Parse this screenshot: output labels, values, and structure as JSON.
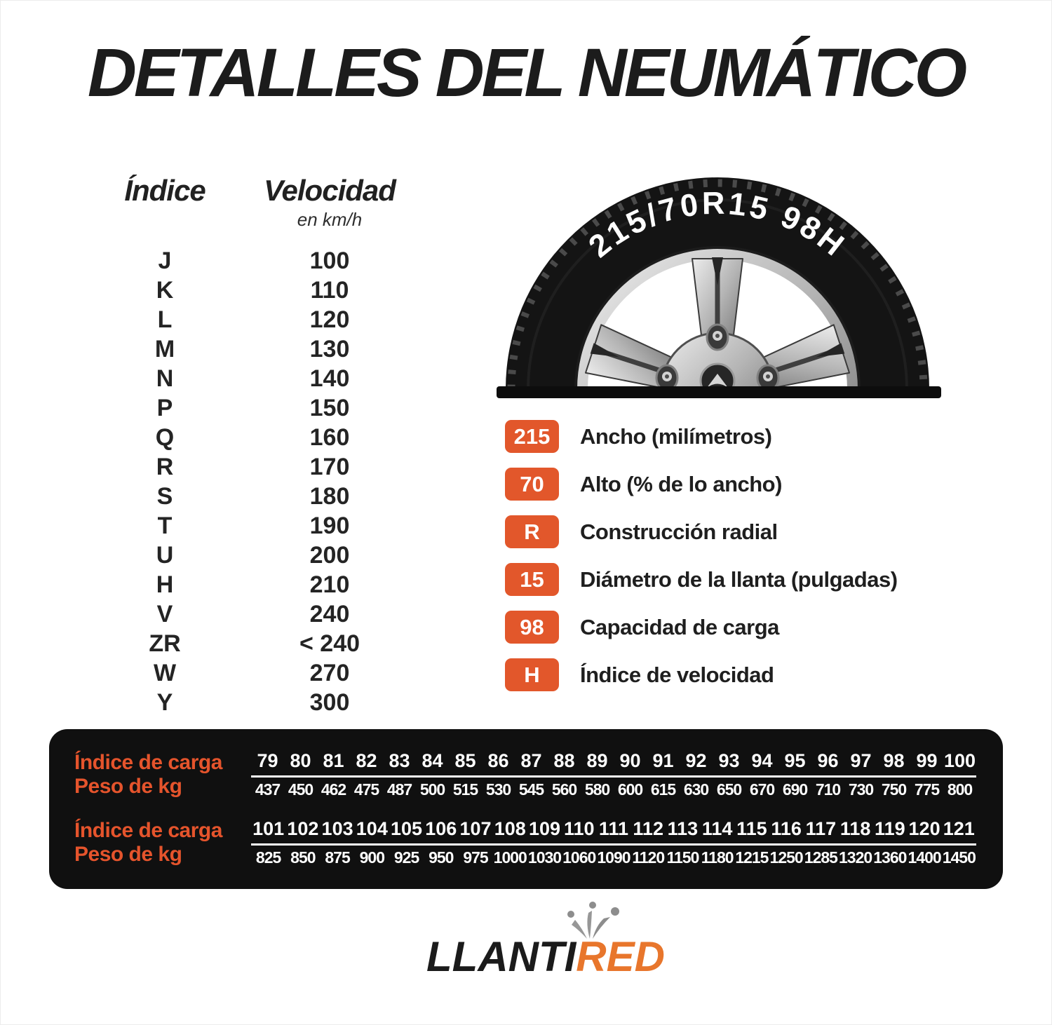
{
  "title": "DETALLES DEL NEUMÁTICO",
  "colors": {
    "accent_orange": "#E2572B",
    "panel_black": "#101010",
    "logo_orange": "#E8762C",
    "text_dark": "#1F1F1F"
  },
  "speed_table": {
    "col1_header": "Índice",
    "col2_header": "Velocidad",
    "col2_subheader": "en km/h",
    "rows": [
      {
        "letter": "J",
        "speed": "100"
      },
      {
        "letter": "K",
        "speed": "110"
      },
      {
        "letter": "L",
        "speed": "120"
      },
      {
        "letter": "M",
        "speed": "130"
      },
      {
        "letter": "N",
        "speed": "140"
      },
      {
        "letter": "P",
        "speed": "150"
      },
      {
        "letter": "Q",
        "speed": "160"
      },
      {
        "letter": "R",
        "speed": "170"
      },
      {
        "letter": "S",
        "speed": "180"
      },
      {
        "letter": "T",
        "speed": "190"
      },
      {
        "letter": "U",
        "speed": "200"
      },
      {
        "letter": "H",
        "speed": "210"
      },
      {
        "letter": "V",
        "speed": "240"
      },
      {
        "letter": "ZR",
        "speed": "< 240"
      },
      {
        "letter": "W",
        "speed": "270"
      },
      {
        "letter": "Y",
        "speed": "300"
      }
    ]
  },
  "tire": {
    "marking": "215/70R15 98H"
  },
  "legend": {
    "items": [
      {
        "badge": "215",
        "label": "Ancho (milímetros)"
      },
      {
        "badge": "70",
        "label": "Alto (% de lo ancho)"
      },
      {
        "badge": "R",
        "label": "Construcción radial"
      },
      {
        "badge": "15",
        "label": "Diámetro de la llanta (pulgadas)"
      },
      {
        "badge": "98",
        "label": "Capacidad de carga"
      },
      {
        "badge": "H",
        "label": "Índice de velocidad"
      }
    ]
  },
  "load_table": {
    "index_label": "Índice de carga",
    "weight_label": "Peso de kg",
    "groups": [
      {
        "indices": [
          79,
          80,
          81,
          82,
          83,
          84,
          85,
          86,
          87,
          88,
          89,
          90,
          91,
          92,
          93,
          94,
          95,
          96,
          97,
          98,
          99,
          100
        ],
        "weights": [
          437,
          450,
          462,
          475,
          487,
          500,
          515,
          530,
          545,
          560,
          580,
          600,
          615,
          630,
          650,
          670,
          690,
          710,
          730,
          750,
          775,
          800
        ]
      },
      {
        "indices": [
          101,
          102,
          103,
          104,
          105,
          106,
          107,
          108,
          109,
          110,
          111,
          112,
          113,
          114,
          115,
          116,
          117,
          118,
          119,
          120,
          121
        ],
        "weights": [
          825,
          850,
          875,
          900,
          925,
          950,
          975,
          1000,
          1030,
          1060,
          1090,
          1120,
          1150,
          1180,
          1215,
          1250,
          1285,
          1320,
          1360,
          1400,
          1450
        ]
      }
    ]
  },
  "logo": {
    "part1": "LLANTI",
    "part2": "RED"
  }
}
